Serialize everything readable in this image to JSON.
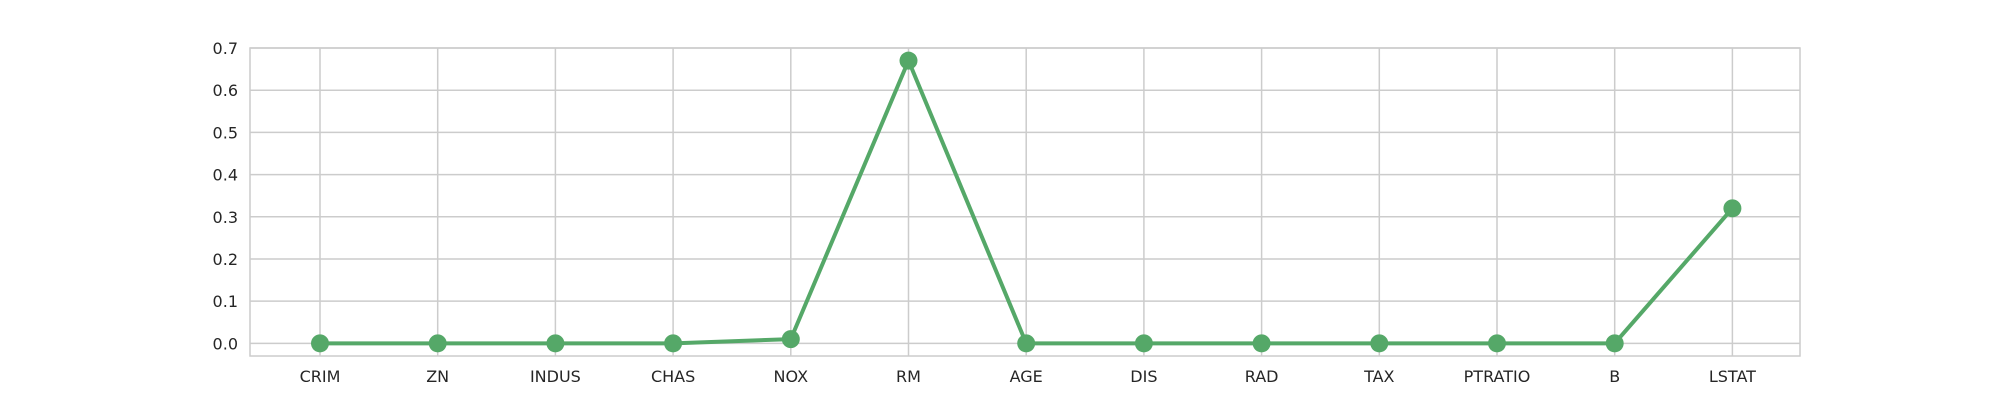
{
  "chart_data": {
    "type": "line",
    "title": "",
    "xlabel": "",
    "ylabel": "",
    "categories": [
      "CRIM",
      "ZN",
      "INDUS",
      "CHAS",
      "NOX",
      "RM",
      "AGE",
      "DIS",
      "RAD",
      "TAX",
      "PTRATIO",
      "B",
      "LSTAT"
    ],
    "series": [
      {
        "values": [
          0.0,
          0.0,
          0.0,
          0.0,
          0.01,
          0.67,
          0.0,
          0.0,
          0.0,
          0.0,
          0.0,
          0.0,
          0.32
        ]
      }
    ],
    "yticks": [
      "0.0",
      "0.1",
      "0.2",
      "0.3",
      "0.4",
      "0.5",
      "0.6",
      "0.7"
    ],
    "ylim": [
      -0.03,
      0.7
    ],
    "grid": true,
    "legend": "none",
    "colors": {
      "line": "#55a868",
      "grid": "#cccccc",
      "frame": "#cccccc"
    }
  }
}
